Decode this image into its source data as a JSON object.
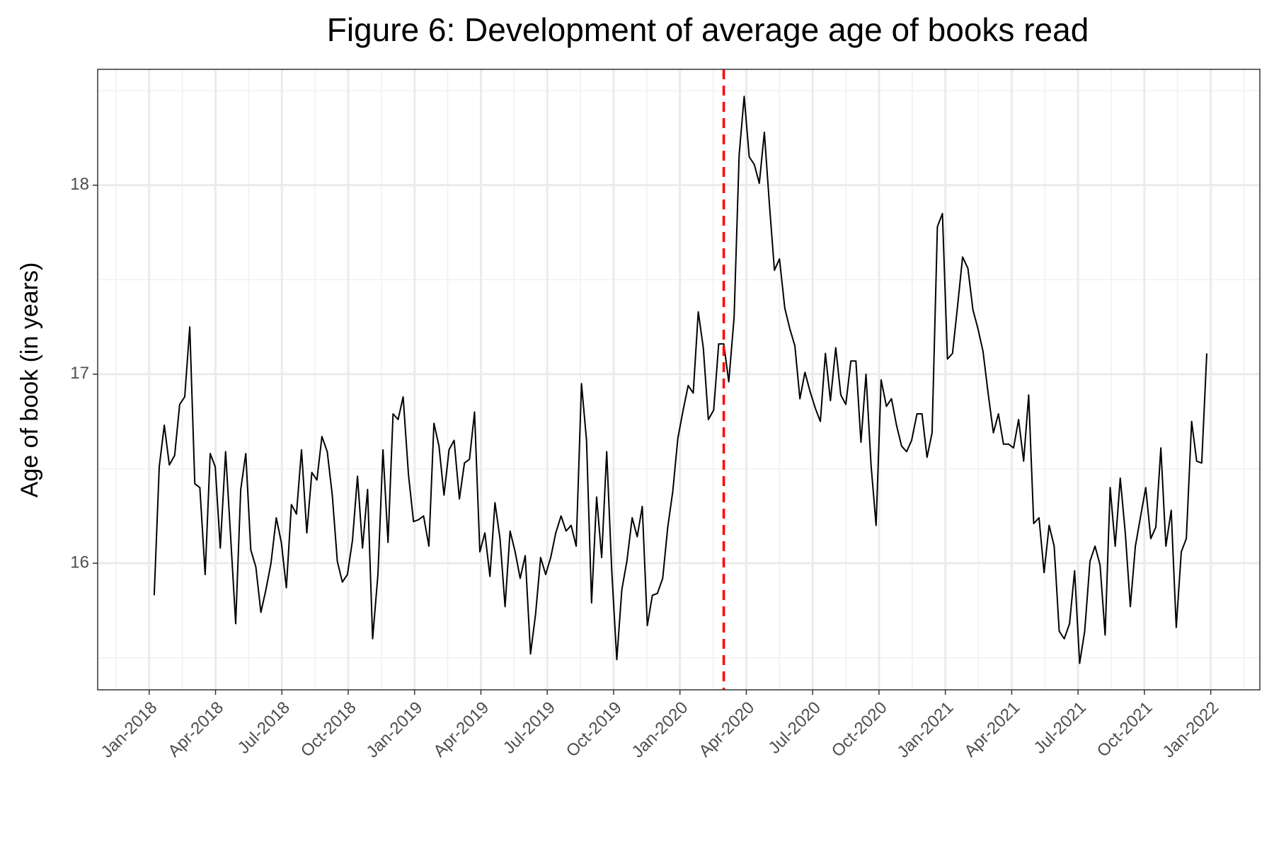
{
  "chart_data": {
    "type": "line",
    "title": "Figure 6: Development of average age of books read",
    "y_label": "Age of book (in years)",
    "color": "#000000",
    "grid": true,
    "xlim": [
      2017.806,
      2022.185
    ],
    "ylim": [
      15.33,
      18.613
    ],
    "yticks": [
      16,
      17,
      18
    ],
    "yminorticks": [
      15.5,
      16.5,
      17.5,
      18.5
    ],
    "xticks": [
      {
        "value": 2018,
        "label": "Jan-2018"
      },
      {
        "value": 2018.25,
        "label": "Apr-2018"
      },
      {
        "value": 2018.5,
        "label": "Jul-2018"
      },
      {
        "value": 2018.75,
        "label": "Oct-2018"
      },
      {
        "value": 2019,
        "label": "Jan-2019"
      },
      {
        "value": 2019.25,
        "label": "Apr-2019"
      },
      {
        "value": 2019.5,
        "label": "Jul-2019"
      },
      {
        "value": 2019.75,
        "label": "Oct-2019"
      },
      {
        "value": 2020,
        "label": "Jan-2020"
      },
      {
        "value": 2020.25,
        "label": "Apr-2020"
      },
      {
        "value": 2020.5,
        "label": "Jul-2020"
      },
      {
        "value": 2020.75,
        "label": "Oct-2020"
      },
      {
        "value": 2021,
        "label": "Jan-2021"
      },
      {
        "value": 2021.25,
        "label": "Apr-2021"
      },
      {
        "value": 2021.5,
        "label": "Jul-2021"
      },
      {
        "value": 2021.75,
        "label": "Oct-2021"
      },
      {
        "value": 2022,
        "label": "Jan-2022"
      }
    ],
    "xminorticks": [
      2017.875,
      2018.125,
      2018.375,
      2018.625,
      2018.875,
      2019.125,
      2019.375,
      2019.625,
      2019.875,
      2020.125,
      2020.375,
      2020.625,
      2020.875,
      2021.125,
      2021.375,
      2021.625,
      2021.875,
      2022.125
    ],
    "vline": {
      "x": 2020.165,
      "color": "#ff0000"
    },
    "x": [
      2018.019,
      2018.038,
      2018.057,
      2018.076,
      2018.096,
      2018.115,
      2018.134,
      2018.153,
      2018.172,
      2018.191,
      2018.211,
      2018.23,
      2018.249,
      2018.268,
      2018.288,
      2018.307,
      2018.326,
      2018.345,
      2018.364,
      2018.383,
      2018.402,
      2018.421,
      2018.44,
      2018.459,
      2018.479,
      2018.498,
      2018.517,
      2018.536,
      2018.555,
      2018.574,
      2018.594,
      2018.613,
      2018.632,
      2018.651,
      2018.671,
      2018.69,
      2018.709,
      2018.728,
      2018.747,
      2018.766,
      2018.785,
      2018.804,
      2018.823,
      2018.842,
      2018.862,
      2018.881,
      2018.9,
      2018.919,
      2018.938,
      2018.957,
      2018.977,
      2018.996,
      2019.015,
      2019.034,
      2019.054,
      2019.073,
      2019.092,
      2019.111,
      2019.13,
      2019.149,
      2019.169,
      2019.188,
      2019.207,
      2019.226,
      2019.246,
      2019.265,
      2019.284,
      2019.303,
      2019.322,
      2019.341,
      2019.36,
      2019.379,
      2019.398,
      2019.417,
      2019.437,
      2019.456,
      2019.475,
      2019.494,
      2019.513,
      2019.532,
      2019.552,
      2019.571,
      2019.59,
      2019.609,
      2019.629,
      2019.648,
      2019.667,
      2019.686,
      2019.705,
      2019.724,
      2019.743,
      2019.762,
      2019.781,
      2019.8,
      2019.82,
      2019.839,
      2019.858,
      2019.877,
      2019.896,
      2019.915,
      2019.935,
      2019.954,
      2019.973,
      2019.992,
      2020.012,
      2020.031,
      2020.05,
      2020.069,
      2020.088,
      2020.107,
      2020.127,
      2020.146,
      2020.165,
      2020.184,
      2020.204,
      2020.223,
      2020.242,
      2020.261,
      2020.28,
      2020.299,
      2020.318,
      2020.337,
      2020.356,
      2020.375,
      2020.395,
      2020.414,
      2020.433,
      2020.452,
      2020.471,
      2020.49,
      2020.51,
      2020.529,
      2020.548,
      2020.567,
      2020.587,
      2020.606,
      2020.625,
      2020.644,
      2020.663,
      2020.682,
      2020.701,
      2020.72,
      2020.739,
      2020.758,
      2020.778,
      2020.797,
      2020.816,
      2020.835,
      2020.854,
      2020.873,
      2020.893,
      2020.912,
      2020.931,
      2020.95,
      2020.97,
      2020.989,
      2021.008,
      2021.027,
      2021.046,
      2021.065,
      2021.085,
      2021.104,
      2021.123,
      2021.142,
      2021.162,
      2021.181,
      2021.2,
      2021.219,
      2021.238,
      2021.257,
      2021.276,
      2021.295,
      2021.314,
      2021.333,
      2021.353,
      2021.372,
      2021.391,
      2021.41,
      2021.429,
      2021.448,
      2021.468,
      2021.487,
      2021.506,
      2021.525,
      2021.545,
      2021.564,
      2021.583,
      2021.602,
      2021.621,
      2021.64,
      2021.659,
      2021.678,
      2021.697,
      2021.716,
      2021.736,
      2021.755,
      2021.774,
      2021.793,
      2021.812,
      2021.831,
      2021.851,
      2021.87,
      2021.889,
      2021.908,
      2021.928,
      2021.947,
      2021.966,
      2021.985
    ],
    "values": [
      15.83,
      16.51,
      16.73,
      16.52,
      16.57,
      16.84,
      16.88,
      17.25,
      16.42,
      16.4,
      15.94,
      16.58,
      16.51,
      16.08,
      16.59,
      16.14,
      15.68,
      16.39,
      16.58,
      16.07,
      15.98,
      15.74,
      15.86,
      16.0,
      16.24,
      16.11,
      15.87,
      16.31,
      16.26,
      16.6,
      16.16,
      16.48,
      16.44,
      16.67,
      16.59,
      16.36,
      16.01,
      15.9,
      15.94,
      16.12,
      16.46,
      16.08,
      16.39,
      15.6,
      15.94,
      16.6,
      16.11,
      16.79,
      16.76,
      16.88,
      16.47,
      16.22,
      16.23,
      16.25,
      16.09,
      16.74,
      16.62,
      16.36,
      16.6,
      16.65,
      16.34,
      16.53,
      16.55,
      16.8,
      16.06,
      16.16,
      15.93,
      16.32,
      16.13,
      15.77,
      16.17,
      16.06,
      15.92,
      16.04,
      15.52,
      15.73,
      16.03,
      15.94,
      16.03,
      16.16,
      16.25,
      16.17,
      16.2,
      16.09,
      16.95,
      16.65,
      15.79,
      16.35,
      16.03,
      16.59,
      15.96,
      15.49,
      15.86,
      16.01,
      16.24,
      16.14,
      16.3,
      15.67,
      15.83,
      15.84,
      15.92,
      16.19,
      16.38,
      16.66,
      16.81,
      16.94,
      16.9,
      17.33,
      17.14,
      16.76,
      16.81,
      17.16,
      17.16,
      16.96,
      17.3,
      18.16,
      18.47,
      18.15,
      18.11,
      18.01,
      18.28,
      17.9,
      17.55,
      17.61,
      17.35,
      17.24,
      17.15,
      16.87,
      17.01,
      16.91,
      16.82,
      16.75,
      17.11,
      16.86,
      17.14,
      16.89,
      16.84,
      17.07,
      17.07,
      16.64,
      17.0,
      16.52,
      16.2,
      16.97,
      16.83,
      16.87,
      16.73,
      16.62,
      16.59,
      16.65,
      16.79,
      16.79,
      16.56,
      16.69,
      17.78,
      17.85,
      17.08,
      17.11,
      17.36,
      17.62,
      17.56,
      17.34,
      17.24,
      17.12,
      16.89,
      16.69,
      16.79,
      16.63,
      16.63,
      16.61,
      16.76,
      16.54,
      16.89,
      16.21,
      16.24,
      15.95,
      16.2,
      16.09,
      15.64,
      15.6,
      15.68,
      15.96,
      15.47,
      15.64,
      16.01,
      16.09,
      15.99,
      15.62,
      16.4,
      16.09,
      16.45,
      16.16,
      15.77,
      16.09,
      16.25,
      16.4,
      16.13,
      16.19,
      16.61,
      16.09,
      16.28,
      15.66,
      16.06,
      16.13,
      16.75,
      16.54,
      16.53,
      17.11
    ]
  }
}
